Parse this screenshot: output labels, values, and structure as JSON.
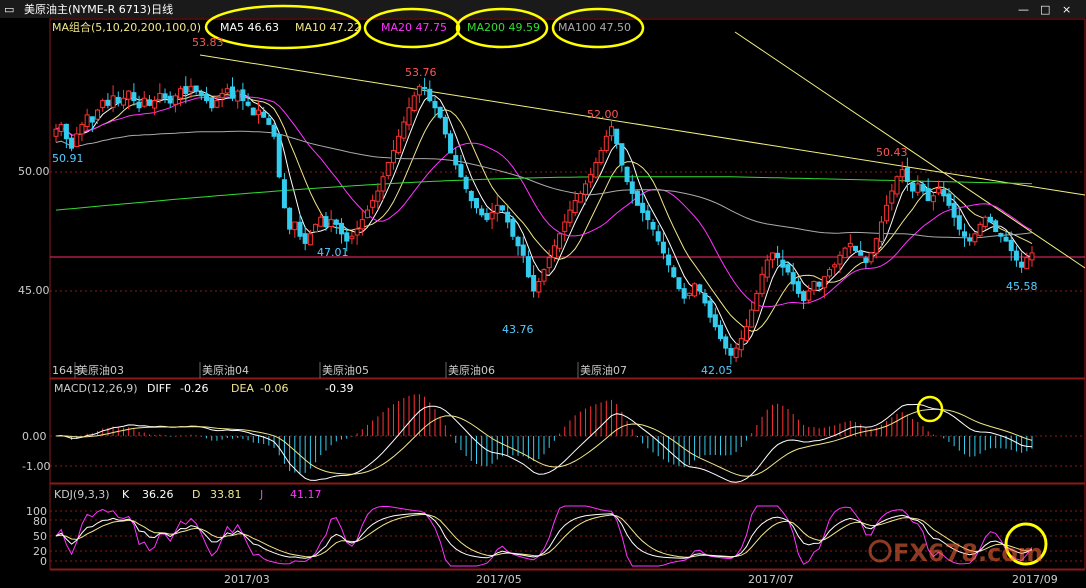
{
  "window": {
    "title": "美原油主(NYME-R 6713)日线",
    "controls": [
      "—",
      "□",
      "×"
    ]
  },
  "main_legend": {
    "prefix": "MA组合(5,10,20,200,100,0)",
    "items": [
      {
        "label": "MA5",
        "value": "46.63",
        "color": "#ffffff"
      },
      {
        "label": "MA10",
        "value": "47.22",
        "color": "#f0e68c"
      },
      {
        "label": "MA20",
        "value": "47.75",
        "color": "#ff33ff"
      },
      {
        "label": "MA200",
        "value": "49.59",
        "color": "#33dd33"
      },
      {
        "label": "MA100",
        "value": "47.50",
        "color": "#aaaaaa"
      }
    ]
  },
  "price_axis": {
    "ticks": [
      "50.00",
      "45.00"
    ]
  },
  "price_annotations": [
    {
      "text": "53.83",
      "color": "#ff5555"
    },
    {
      "text": "53.76",
      "color": "#ff5555"
    },
    {
      "text": "52.00",
      "color": "#ff5555"
    },
    {
      "text": "50.43",
      "color": "#ff5555"
    },
    {
      "text": "50.91",
      "color": "#55ccff"
    },
    {
      "text": "47.01",
      "color": "#55ccff"
    },
    {
      "text": "43.76",
      "color": "#55ccff"
    },
    {
      "text": "42.05",
      "color": "#55ccff"
    },
    {
      "text": "45.58",
      "color": "#55ccff"
    }
  ],
  "contract_labels": [
    "1643",
    "美原油03",
    "美原油04",
    "美原油05",
    "美原油06",
    "美原油07"
  ],
  "macd": {
    "label": "MACD(12,26,9)",
    "items": [
      {
        "label": "DIFF",
        "value": "-0.26"
      },
      {
        "label": "DEA",
        "value": "-0.06"
      },
      {
        "label": "",
        "value": "-0.39"
      }
    ],
    "ticks": [
      "0.00",
      "-1.00"
    ]
  },
  "kdj": {
    "label": "KDJ(9,3,3)",
    "items": [
      {
        "label": "K",
        "value": "36.26",
        "color": "#ffffff"
      },
      {
        "label": "D",
        "value": "33.81",
        "color": "#f0e68c"
      },
      {
        "label": "J",
        "value": "41.17",
        "color": "#ff33ff"
      }
    ],
    "ticks": [
      "100",
      "80",
      "50",
      "20",
      "0"
    ]
  },
  "x_axis": {
    "ticks": [
      "2017/03",
      "2017/05",
      "2017/07",
      "2017/09"
    ]
  },
  "watermark": "FX678.com",
  "chart_data": {
    "type": "candlestick",
    "title": "美原油主(NYME-R 6713)日线",
    "colors": {
      "up": "#ff3333",
      "down": "#33ccee",
      "grid": "#882222"
    },
    "closes": [
      51.8,
      52.0,
      51.4,
      51.0,
      51.6,
      52.0,
      52.4,
      52.1,
      52.6,
      53.0,
      52.8,
      53.2,
      52.9,
      53.1,
      53.4,
      53.0,
      52.7,
      53.1,
      52.8,
      53.0,
      53.3,
      53.1,
      52.9,
      53.2,
      53.5,
      53.3,
      53.6,
      53.4,
      53.2,
      53.0,
      52.7,
      53.0,
      53.3,
      53.5,
      53.1,
      53.4,
      53.0,
      52.8,
      52.4,
      52.6,
      52.3,
      52.0,
      51.5,
      49.8,
      48.5,
      47.6,
      47.9,
      47.3,
      47.0,
      47.4,
      47.8,
      48.1,
      47.7,
      48.0,
      47.8,
      47.4,
      47.1,
      47.3,
      47.6,
      48.0,
      48.4,
      48.8,
      49.2,
      49.8,
      50.4,
      50.9,
      51.5,
      52.1,
      52.7,
      53.2,
      53.6,
      53.5,
      53.0,
      52.7,
      52.3,
      51.6,
      50.8,
      50.3,
      49.8,
      49.3,
      48.8,
      48.5,
      48.2,
      48.0,
      48.3,
      48.6,
      48.4,
      47.9,
      47.3,
      46.9,
      46.5,
      45.6,
      45.0,
      45.4,
      45.9,
      46.4,
      46.9,
      47.4,
      47.9,
      48.4,
      48.8,
      49.1,
      49.5,
      49.9,
      50.4,
      50.9,
      51.5,
      51.9,
      51.2,
      50.3,
      49.6,
      49.1,
      48.6,
      48.3,
      48.0,
      47.6,
      47.1,
      46.6,
      46.1,
      45.6,
      45.1,
      44.7,
      44.9,
      45.3,
      45.0,
      44.5,
      43.9,
      43.5,
      43.0,
      42.6,
      42.3,
      42.6,
      43.0,
      43.5,
      44.2,
      44.9,
      45.7,
      46.3,
      46.6,
      46.4,
      46.0,
      45.8,
      45.3,
      44.9,
      44.6,
      45.0,
      45.4,
      45.2,
      45.6,
      45.9,
      46.1,
      46.5,
      46.8,
      47.0,
      46.7,
      46.5,
      46.2,
      46.6,
      47.2,
      47.9,
      48.6,
      49.2,
      49.8,
      50.1,
      49.6,
      49.2,
      49.5,
      49.2,
      48.8,
      49.0,
      49.3,
      49.0,
      48.6,
      48.1,
      47.6,
      47.3,
      47.1,
      47.4,
      47.8,
      48.1,
      47.9,
      47.5,
      47.3,
      47.1,
      46.7,
      46.3,
      46.0,
      46.4,
      46.6
    ]
  }
}
